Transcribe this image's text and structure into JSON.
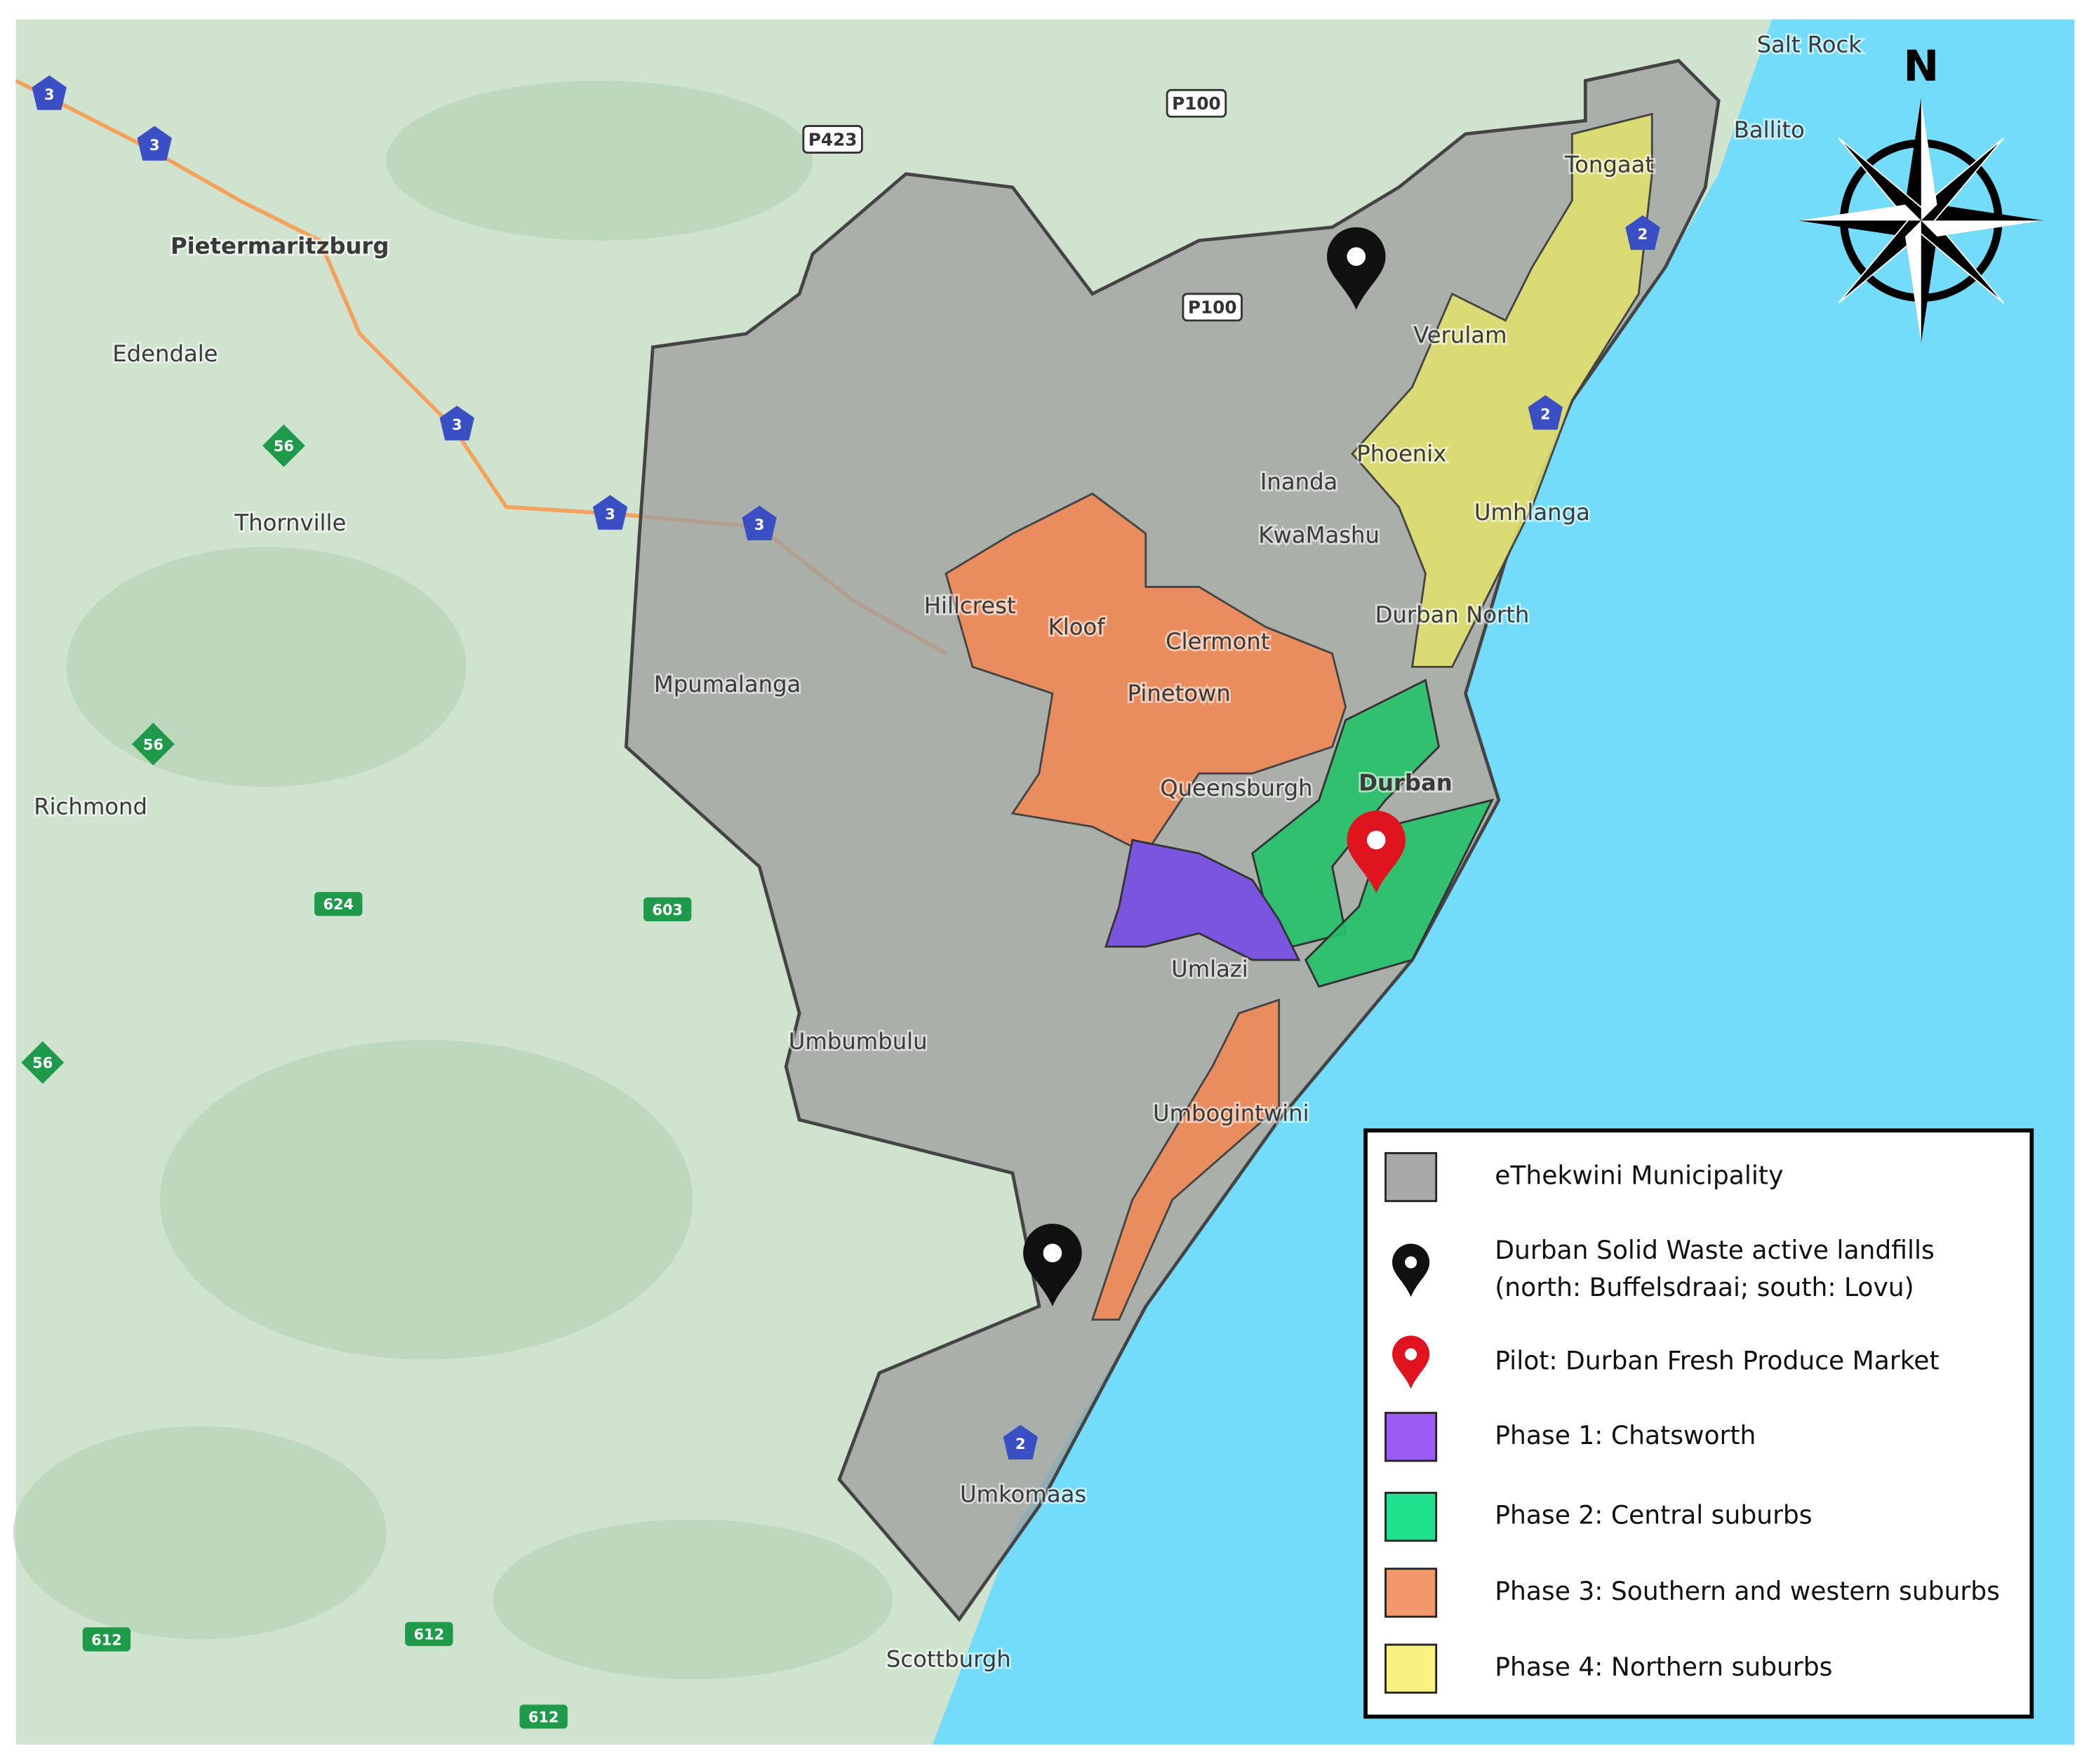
{
  "compass": {
    "label": "N"
  },
  "place_labels": [
    "Salt Rock",
    "Ballito",
    "Pietermaritzburg",
    "Edendale",
    "Thornville",
    "Richmond",
    "Tongaat",
    "Verulam",
    "Phoenix",
    "Inanda",
    "KwaMashu",
    "Umhlanga",
    "Durban North",
    "Hillcrest",
    "Kloof",
    "Clermont",
    "Pinetown",
    "Mpumalanga",
    "Queensburgh",
    "Durban",
    "Umlazi",
    "Umbumbulu",
    "Umbogintwini",
    "Umkomaas",
    "Scottburgh"
  ],
  "road_labels": [
    "P100",
    "P423",
    "P100",
    "3",
    "3",
    "3",
    "3",
    "3",
    "56",
    "56",
    "56",
    "624",
    "603",
    "612",
    "612",
    "612",
    "2",
    "2",
    "2"
  ],
  "legend": {
    "items": [
      {
        "label": "eThekwini Municipality"
      },
      {
        "label": "Durban Solid Waste active landfills",
        "detail": "(north: Buffelsdraai; south: Lovu)"
      },
      {
        "label": "Pilot: Durban Fresh Produce Market"
      },
      {
        "label": "Phase 1: Chatsworth"
      },
      {
        "label": "Phase 2: Central suburbs"
      },
      {
        "label": "Phase 3: Southern and western suburbs"
      },
      {
        "label": "Phase 4: Northern suburbs"
      }
    ]
  }
}
